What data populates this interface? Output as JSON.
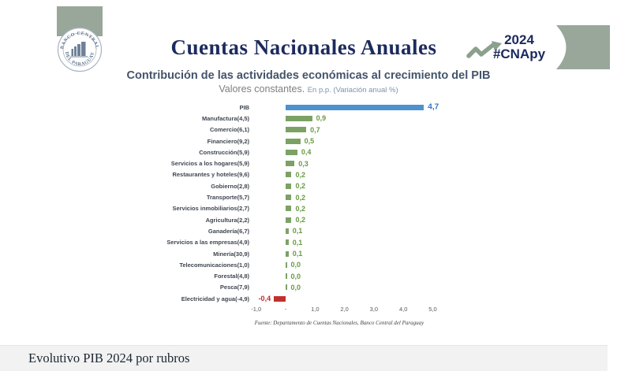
{
  "header": {
    "logo": {
      "top_text": "BANCO CENTRAL",
      "bottom_text": "DEL PARAGUAY"
    },
    "title": "Cuentas Nacionales Anuales",
    "year": "2024",
    "hashtag": "#CNApy"
  },
  "chart": {
    "title": "Contribución de las actividades económicas al crecimiento del PIB",
    "subtitle": "Valores constantes.",
    "subtitle_note": "En p.p. (Variación anual %)"
  },
  "chart_data": {
    "type": "bar",
    "orientation": "horizontal",
    "title": "Contribución de las actividades económicas al crecimiento del PIB",
    "subtitle": "Valores constantes. En p.p. (Variación anual %)",
    "categories": [
      "PIB",
      "Manufactura(4,5)",
      "Comercio(6,1)",
      "Financiero(9,2)",
      "Construcción(5,9)",
      "Servicios a los hogares(5,9)",
      "Restaurantes y hoteles(9,6)",
      "Gobierno(2,8)",
      "Transporte(5,7)",
      "Servicios inmobiliarios(2,7)",
      "Agricultura(2,2)",
      "Ganadería(6,7)",
      "Servicios a las empresas(4,9)",
      "Minería(30,9)",
      "Telecomunicaciones(1,0)",
      "Forestal(4,8)",
      "Pesca(7,9)",
      "Electricidad y agua(-4,9)"
    ],
    "values": [
      4.7,
      0.9,
      0.7,
      0.5,
      0.4,
      0.3,
      0.2,
      0.2,
      0.2,
      0.2,
      0.2,
      0.1,
      0.1,
      0.1,
      0.0,
      0.0,
      0.0,
      -0.4
    ],
    "value_labels": [
      "4,7",
      "0,9",
      "0,7",
      "0,5",
      "0,4",
      "0,3",
      "0,2",
      "0,2",
      "0,2",
      "0,2",
      "0,2",
      "0,1",
      "0,1",
      "0,1",
      "0,0",
      "0,0",
      "0,0",
      "-0,4"
    ],
    "x_ticks": [
      "-1,0",
      "-",
      "1,0",
      "2,0",
      "3,0",
      "4,0",
      "5,0"
    ],
    "x_tick_values": [
      -1,
      0,
      1,
      2,
      3,
      4,
      5
    ],
    "xlim": [
      -1,
      5.5
    ],
    "grid": false,
    "legend": false,
    "colors": {
      "pib_bar": "#4e91d0",
      "pib_text": "#2e78c8",
      "positive_bar": "#7ca165",
      "positive_text": "#679a41",
      "negative_bar": "#bf312f",
      "negative_text": "#c02a2a",
      "accent_sage": "#98a79a",
      "navy": "#1c2b5e"
    },
    "source": "Fuente: Departamento de Cuentas Nacionales, Banco Central del Paraguay"
  },
  "footer": {
    "caption": "Evolutivo PIB 2024 por rubros"
  }
}
